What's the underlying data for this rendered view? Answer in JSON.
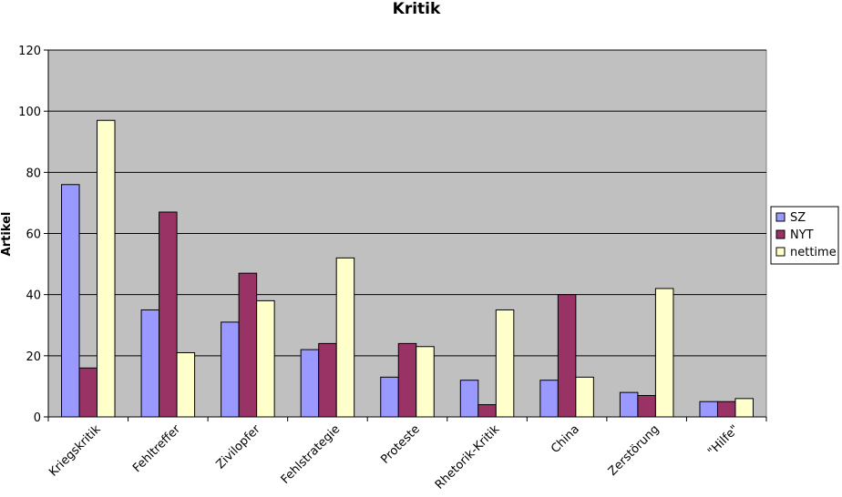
{
  "chart_data": {
    "type": "bar",
    "title": "Kritik",
    "ylabel": "Artikel",
    "xlabel": "",
    "ylim": [
      0,
      120
    ],
    "yticks": [
      0,
      20,
      40,
      60,
      80,
      100,
      120
    ],
    "grid": true,
    "legend_position": "right",
    "categories": [
      "Kriegskritik",
      "Fehltreffer",
      "Zivilopfer",
      "Fehlstrategie",
      "Proteste",
      "Rhetorik-Kritik",
      "China",
      "Zerstörung",
      "\"Hilfe\""
    ],
    "series": [
      {
        "name": "SZ",
        "color": "#9999ff",
        "values": [
          76,
          35,
          31,
          22,
          13,
          12,
          12,
          8,
          5
        ]
      },
      {
        "name": "NYT",
        "color": "#993366",
        "values": [
          16,
          67,
          47,
          24,
          24,
          4,
          40,
          7,
          5
        ]
      },
      {
        "name": "nettime",
        "color": "#ffffcc",
        "values": [
          97,
          21,
          38,
          52,
          23,
          35,
          13,
          42,
          6
        ]
      }
    ],
    "plot_background": "#c0c0c0"
  }
}
